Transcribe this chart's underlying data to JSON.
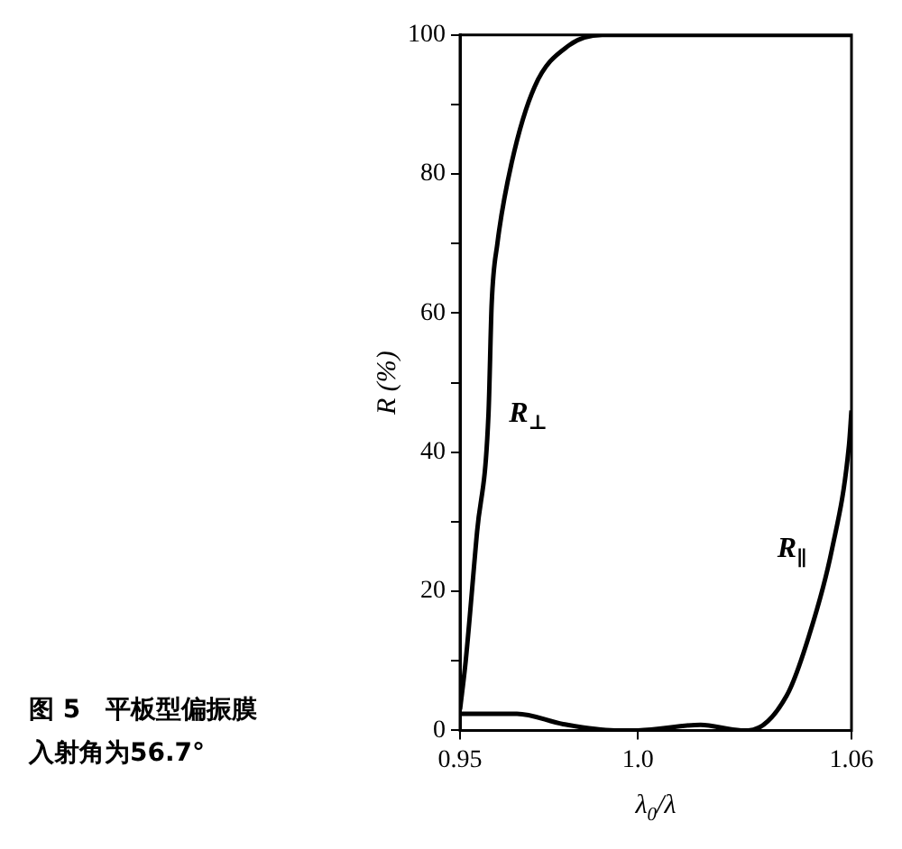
{
  "chart_data": {
    "type": "line",
    "xlabel": "λ$_{0}$/λ",
    "ylabel": "R (%)",
    "xlim": [
      0.95,
      1.06
    ],
    "xticks": [
      0.95,
      {
        "value": 1.0,
        "label": "1.0"
      },
      1.06
    ],
    "ylim": [
      0,
      100
    ],
    "yticks": [
      0,
      {
        "value": 10,
        "label": null
      },
      20,
      {
        "value": 30,
        "label": null
      },
      40,
      {
        "value": 50,
        "label": null
      },
      60,
      {
        "value": 70,
        "label": null
      },
      80,
      {
        "value": 90,
        "label": null
      },
      100
    ],
    "grid": false,
    "legend": false,
    "marker": "none",
    "line_style": "solid",
    "series": [
      {
        "name": "R$_{⊥}$",
        "color": "#000000",
        "x": [
          0.95,
          0.9516,
          0.9548,
          0.958,
          0.9589,
          0.9605,
          0.9645,
          0.971,
          0.9806,
          0.99,
          1.06
        ],
        "values": [
          3,
          10,
          28.6,
          45.5,
          61.4,
          70,
          81.6,
          92.6,
          98.5,
          100,
          100
        ]
      },
      {
        "name": "R$_{∥}$",
        "color": "#000000",
        "x": [
          0.95,
          0.966,
          0.979,
          0.9935,
          1.0,
          1.0176,
          1.029,
          1.031,
          1.0418,
          1.048,
          1.0545,
          1.0593,
          1.06
        ],
        "values": [
          2.4,
          2.4,
          0.9,
          0,
          0,
          0.8,
          0,
          0,
          5,
          13.5,
          26,
          41,
          46
        ]
      }
    ],
    "annotations": [
      "图 5　平板型偏振膜",
      "入射角为56.7°"
    ]
  }
}
